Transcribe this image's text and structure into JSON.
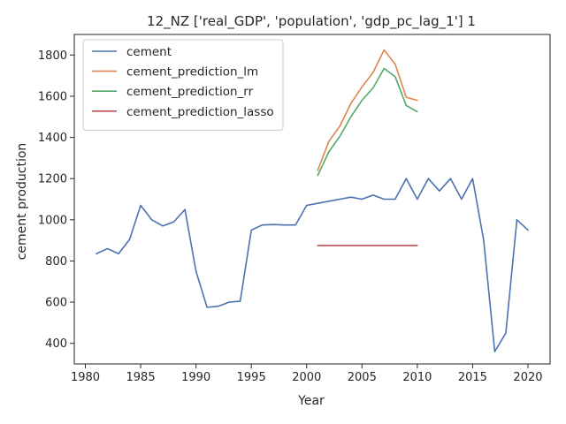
{
  "chart_data": {
    "type": "line",
    "title": "12_NZ ['real_GDP', 'population', 'gdp_pc_lag_1'] 1",
    "xlabel": "Year",
    "ylabel": "cement production",
    "xlim": [
      1979.0,
      2022.0
    ],
    "ylim": [
      300,
      1900
    ],
    "x_ticks": [
      1980,
      1985,
      1990,
      1995,
      2000,
      2005,
      2010,
      2015,
      2020
    ],
    "y_ticks": [
      400,
      600,
      800,
      1000,
      1200,
      1400,
      1600,
      1800
    ],
    "grid": false,
    "legend_position": "top-left",
    "series": [
      {
        "name": "cement",
        "color": "#4c72b0",
        "x": [
          1981,
          1982,
          1983,
          1984,
          1985,
          1986,
          1987,
          1988,
          1989,
          1990,
          1991,
          1992,
          1993,
          1994,
          1995,
          1996,
          1997,
          1998,
          1999,
          2000,
          2001,
          2002,
          2003,
          2004,
          2005,
          2006,
          2007,
          2008,
          2009,
          2010,
          2011,
          2012,
          2013,
          2014,
          2015,
          2016,
          2017,
          2018,
          2019,
          2020
        ],
        "y": [
          835,
          860,
          835,
          905,
          1070,
          1000,
          970,
          990,
          1050,
          750,
          575,
          580,
          600,
          605,
          950,
          975,
          977,
          975,
          975,
          1070,
          1080,
          1090,
          1100,
          1110,
          1100,
          1120,
          1100,
          1100,
          1200,
          1100,
          1200,
          1140,
          1200,
          1100,
          1200,
          900,
          360,
          450,
          1000,
          950
        ]
      },
      {
        "name": "cement_prediction_lm",
        "color": "#dd8452",
        "x": [
          2001,
          2002,
          2003,
          2004,
          2005,
          2006,
          2007,
          2008,
          2009,
          2010
        ],
        "y": [
          1240,
          1380,
          1455,
          1565,
          1645,
          1715,
          1825,
          1755,
          1595,
          1580
        ]
      },
      {
        "name": "cement_prediction_rr",
        "color": "#55a868",
        "x": [
          2001,
          2002,
          2003,
          2004,
          2005,
          2006,
          2007,
          2008,
          2009,
          2010
        ],
        "y": [
          1215,
          1330,
          1405,
          1500,
          1580,
          1640,
          1735,
          1695,
          1555,
          1525
        ]
      },
      {
        "name": "cement_prediction_lasso",
        "color": "#c44e52",
        "x": [
          2001,
          2002,
          2003,
          2004,
          2005,
          2006,
          2007,
          2008,
          2009,
          2010
        ],
        "y": [
          875,
          875,
          875,
          875,
          875,
          875,
          875,
          875,
          875,
          875
        ]
      }
    ]
  }
}
